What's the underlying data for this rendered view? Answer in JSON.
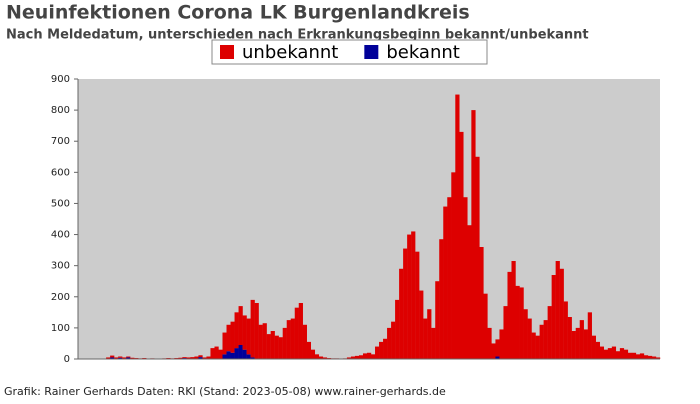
{
  "chart_data": {
    "type": "stacked-bar",
    "title": "Neuinfektionen Corona LK Burgenlandkreis",
    "subtitle": "Nach Meldedatum, unterschieden nach Erkrankungsbeginn bekannt/unbekannt",
    "footer": "Grafik: Rainer Gerhards Daten: RKI (Stand: 2023-05-08) www.rainer-gerhards.de",
    "ylim": [
      0,
      900
    ],
    "yticks": [
      0,
      100,
      200,
      300,
      400,
      500,
      600,
      700,
      800,
      900
    ],
    "legend": "top",
    "categories": [
      null,
      null,
      null,
      null,
      null,
      null,
      null,
      null,
      null,
      null,
      null,
      null,
      null,
      null,
      null,
      null,
      null,
      null,
      null,
      null,
      null,
      null,
      null,
      null,
      null,
      null,
      null,
      null,
      null,
      null,
      null,
      null,
      null,
      null,
      null,
      null,
      null,
      null,
      null,
      null,
      null,
      null,
      null,
      null,
      null,
      null,
      null,
      null,
      null,
      null,
      null,
      null,
      null,
      null,
      null,
      null,
      null,
      null,
      null,
      null,
      null,
      null,
      null,
      null,
      null,
      null,
      null,
      null,
      null,
      null,
      null,
      null,
      null,
      null,
      null,
      null,
      null,
      null,
      null,
      null,
      null,
      null,
      null,
      null,
      null,
      null,
      null,
      null,
      null,
      null,
      null,
      null,
      null,
      null,
      null,
      null,
      null,
      null,
      null,
      null,
      null,
      null,
      null,
      null,
      null,
      null,
      null,
      null,
      null,
      null,
      null,
      null,
      null,
      null,
      null,
      null,
      null,
      null,
      null,
      null,
      null,
      null,
      null,
      null,
      null,
      null,
      null,
      null,
      null,
      null,
      null,
      null,
      null,
      null,
      null,
      null,
      null,
      null,
      null,
      null,
      null,
      null,
      null,
      null,
      null
    ],
    "series": [
      {
        "name": "bekannt",
        "color": "#000099",
        "values": [
          0,
          0,
          0,
          0,
          0,
          0,
          0,
          0,
          5,
          0,
          4,
          0,
          5,
          0,
          0,
          0,
          0,
          0,
          0,
          0,
          0,
          0,
          0,
          0,
          0,
          0,
          3,
          0,
          0,
          0,
          6,
          0,
          0,
          0,
          0,
          0,
          15,
          25,
          20,
          35,
          45,
          30,
          15,
          5,
          0,
          0,
          0,
          0,
          0,
          0,
          0,
          0,
          0,
          0,
          0,
          0,
          0,
          0,
          0,
          0,
          0,
          0,
          0,
          0,
          0,
          0,
          0,
          0,
          0,
          0,
          0,
          0,
          0,
          0,
          0,
          0,
          0,
          0,
          0,
          0,
          0,
          0,
          0,
          0,
          0,
          0,
          0,
          0,
          0,
          0,
          0,
          0,
          0,
          0,
          0,
          0,
          0,
          0,
          0,
          0,
          0,
          0,
          0,
          0,
          8,
          0,
          0,
          0,
          0,
          0,
          0,
          0,
          0,
          0,
          0,
          0,
          0,
          0,
          0,
          0,
          0,
          0,
          0,
          0,
          0,
          0,
          0,
          0,
          0,
          0,
          0,
          0,
          0,
          0,
          0,
          0,
          0,
          0,
          0,
          0,
          0,
          0,
          0,
          0,
          0
        ]
      },
      {
        "name": "unbekannt",
        "color": "#dd0000",
        "values": [
          0,
          0,
          0,
          0,
          0,
          0,
          0,
          5,
          6,
          5,
          4,
          5,
          3,
          4,
          3,
          2,
          3,
          1,
          2,
          1,
          0,
          2,
          3,
          2,
          3,
          4,
          3,
          5,
          6,
          8,
          6,
          5,
          8,
          35,
          40,
          30,
          70,
          85,
          100,
          115,
          125,
          110,
          115,
          185,
          180,
          110,
          115,
          80,
          90,
          75,
          70,
          100,
          125,
          130,
          165,
          180,
          110,
          55,
          30,
          15,
          8,
          5,
          3,
          2,
          2,
          1,
          2,
          5,
          8,
          10,
          12,
          18,
          20,
          15,
          40,
          55,
          65,
          100,
          120,
          190,
          290,
          355,
          400,
          410,
          345,
          220,
          130,
          160,
          100,
          250,
          385,
          490,
          520,
          600,
          850,
          730,
          520,
          430,
          800,
          650,
          360,
          210,
          100,
          50,
          55,
          95,
          170,
          280,
          315,
          235,
          230,
          160,
          130,
          85,
          75,
          110,
          125,
          170,
          270,
          315,
          290,
          185,
          135,
          90,
          100,
          125,
          95,
          150,
          75,
          55,
          40,
          30,
          35,
          40,
          25,
          35,
          30,
          20,
          20,
          15,
          18,
          12,
          10,
          8,
          5
        ]
      }
    ]
  }
}
